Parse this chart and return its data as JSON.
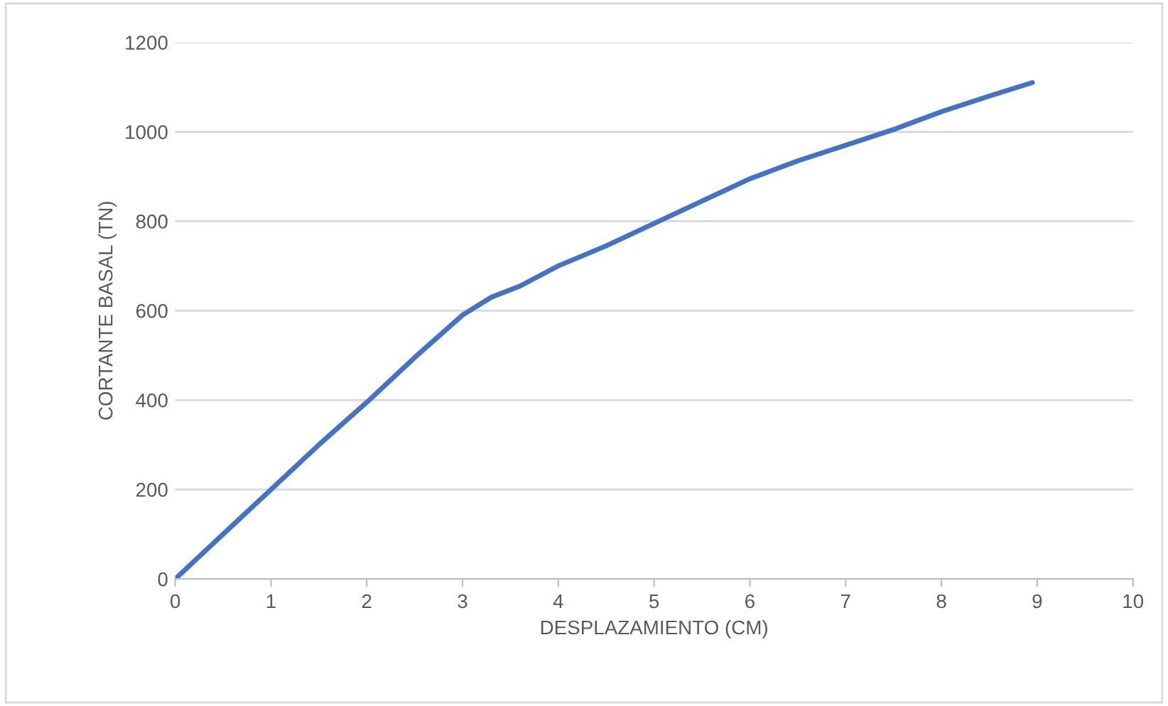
{
  "chart_data": {
    "type": "line",
    "xlabel": "DESPLAZAMIENTO (CM)",
    "ylabel": "CORTANTE BASAL (TN)",
    "x": [
      0,
      0.5,
      1,
      1.5,
      2,
      2.5,
      3,
      3.3,
      3.6,
      4,
      4.5,
      5,
      5.5,
      6,
      6.5,
      7,
      7.5,
      8,
      8.5,
      8.95
    ],
    "series": [
      {
        "color": "#4472c4",
        "values": [
          0,
          100,
          200,
          300,
          395,
          495,
          590,
          630,
          655,
          700,
          745,
          795,
          845,
          895,
          935,
          970,
          1005,
          1045,
          1080,
          1110
        ]
      }
    ],
    "xlim": [
      0,
      10
    ],
    "xticks": [
      0,
      1,
      2,
      3,
      4,
      5,
      6,
      7,
      8,
      9,
      10
    ],
    "ylim": [
      0,
      1200
    ],
    "yticks": [
      0,
      200,
      400,
      600,
      800,
      1000,
      1200
    ],
    "grid": "y",
    "legend": false,
    "marker": "none",
    "line_style": "solid"
  }
}
